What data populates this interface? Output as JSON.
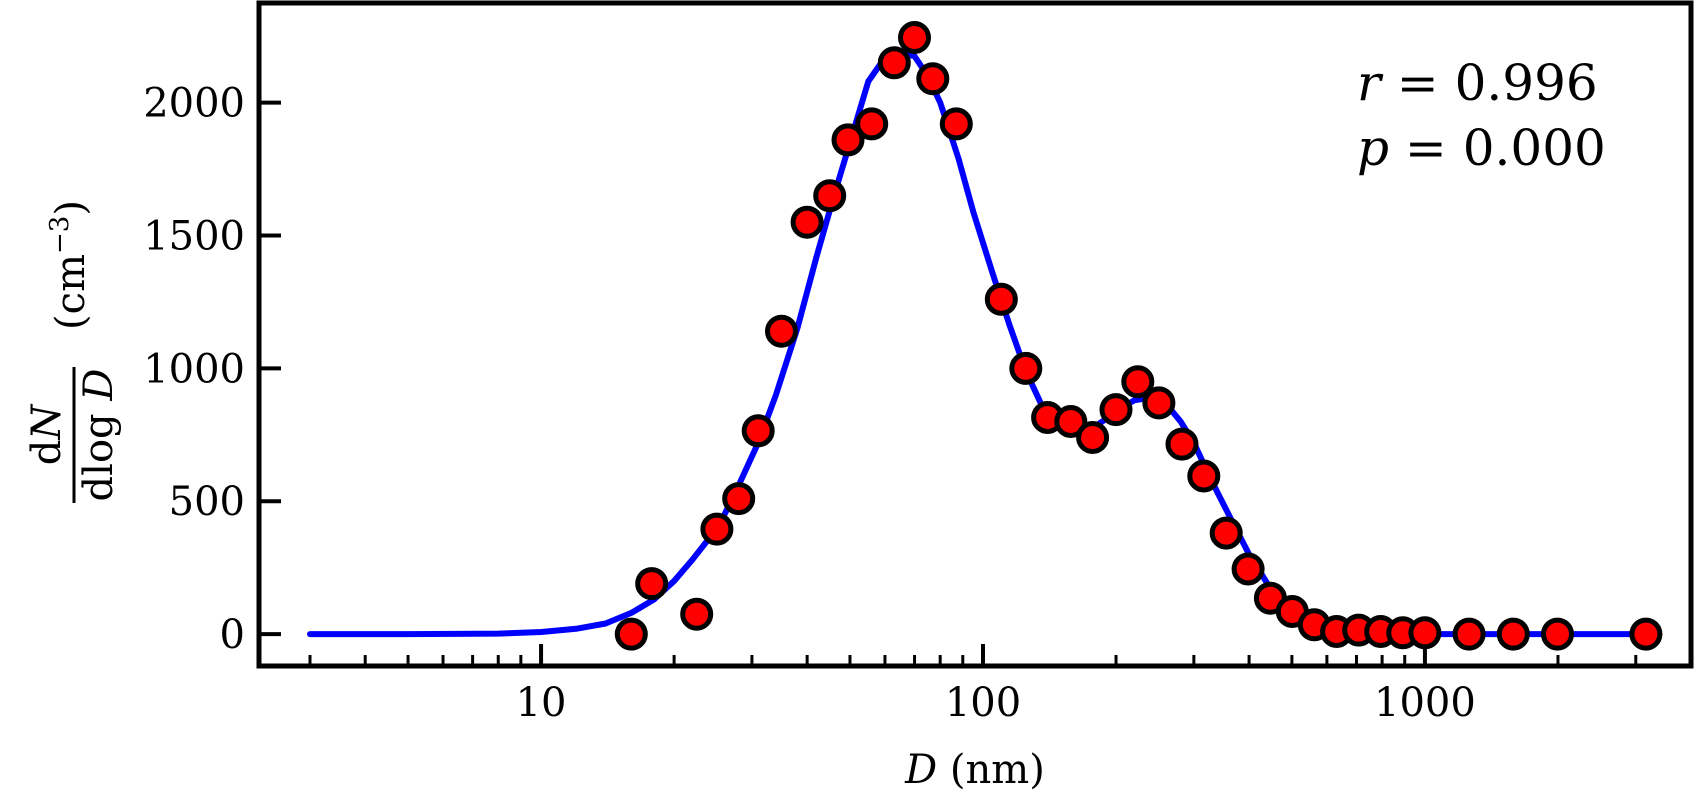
{
  "chart_data": {
    "type": "scatter",
    "x_scale": "log",
    "xlim": [
      2.3,
      4000
    ],
    "ylim": [
      -120,
      2375
    ],
    "x_ticks": [
      10,
      100,
      1000
    ],
    "x_tick_labels": [
      "10",
      "100",
      "1000"
    ],
    "y_ticks": [
      0,
      500,
      1000,
      1500,
      2000
    ],
    "y_tick_labels": [
      "0",
      "500",
      "1000",
      "1500",
      "2000"
    ],
    "xlabel": {
      "var": "D",
      "unit": " (nm)"
    },
    "ylabel": {
      "numerator": "dN",
      "denominator": "dlog D",
      "unit": "(cm",
      "exponent": "−3",
      "close": ")"
    },
    "annotations": [
      {
        "var": "r",
        "text": " = 0.996"
      },
      {
        "var": "p",
        "text": " = 0.000"
      }
    ],
    "colors": {
      "points": "#ff0000",
      "point_edge": "#000000",
      "line": "#0000ff"
    },
    "series": [
      {
        "kind": "points",
        "x": [
          16,
          17.8,
          22.5,
          25,
          28,
          31,
          35,
          40,
          45,
          49.5,
          56,
          63,
          70,
          77,
          87,
          110,
          125,
          140,
          158,
          177,
          200,
          224,
          250,
          282,
          316,
          355,
          398,
          447,
          501,
          562,
          631,
          708,
          794,
          891,
          1000,
          1259,
          1585,
          1995,
          3162
        ],
        "y": [
          0,
          190,
          75,
          395,
          510,
          765,
          1140,
          1550,
          1650,
          1860,
          1920,
          2150,
          2245,
          2090,
          1920,
          1260,
          1000,
          815,
          800,
          740,
          845,
          950,
          870,
          715,
          595,
          380,
          245,
          135,
          85,
          35,
          10,
          15,
          10,
          5,
          5,
          0,
          0,
          0,
          0
        ]
      },
      {
        "kind": "line",
        "x": [
          3,
          5,
          8,
          10,
          12,
          14,
          16,
          18,
          20,
          22,
          24,
          26,
          28,
          31,
          34,
          38,
          42,
          46,
          50,
          55,
          60,
          65,
          70,
          75,
          80,
          88,
          95,
          105,
          115,
          125,
          135,
          145,
          155,
          165,
          175,
          190,
          205,
          220,
          240,
          260,
          280,
          300,
          320,
          340,
          370,
          400,
          440,
          480,
          530,
          580,
          650,
          750,
          900,
          1200,
          2000,
          3200
        ],
        "y": [
          0,
          0,
          2,
          8,
          20,
          40,
          80,
          130,
          200,
          280,
          360,
          450,
          560,
          720,
          900,
          1150,
          1420,
          1650,
          1850,
          2080,
          2170,
          2185,
          2175,
          2100,
          2000,
          1790,
          1590,
          1360,
          1160,
          990,
          870,
          800,
          765,
          760,
          770,
          810,
          850,
          880,
          890,
          865,
          800,
          720,
          620,
          530,
          410,
          300,
          190,
          115,
          55,
          25,
          8,
          2,
          0,
          0,
          0,
          0
        ]
      }
    ]
  }
}
